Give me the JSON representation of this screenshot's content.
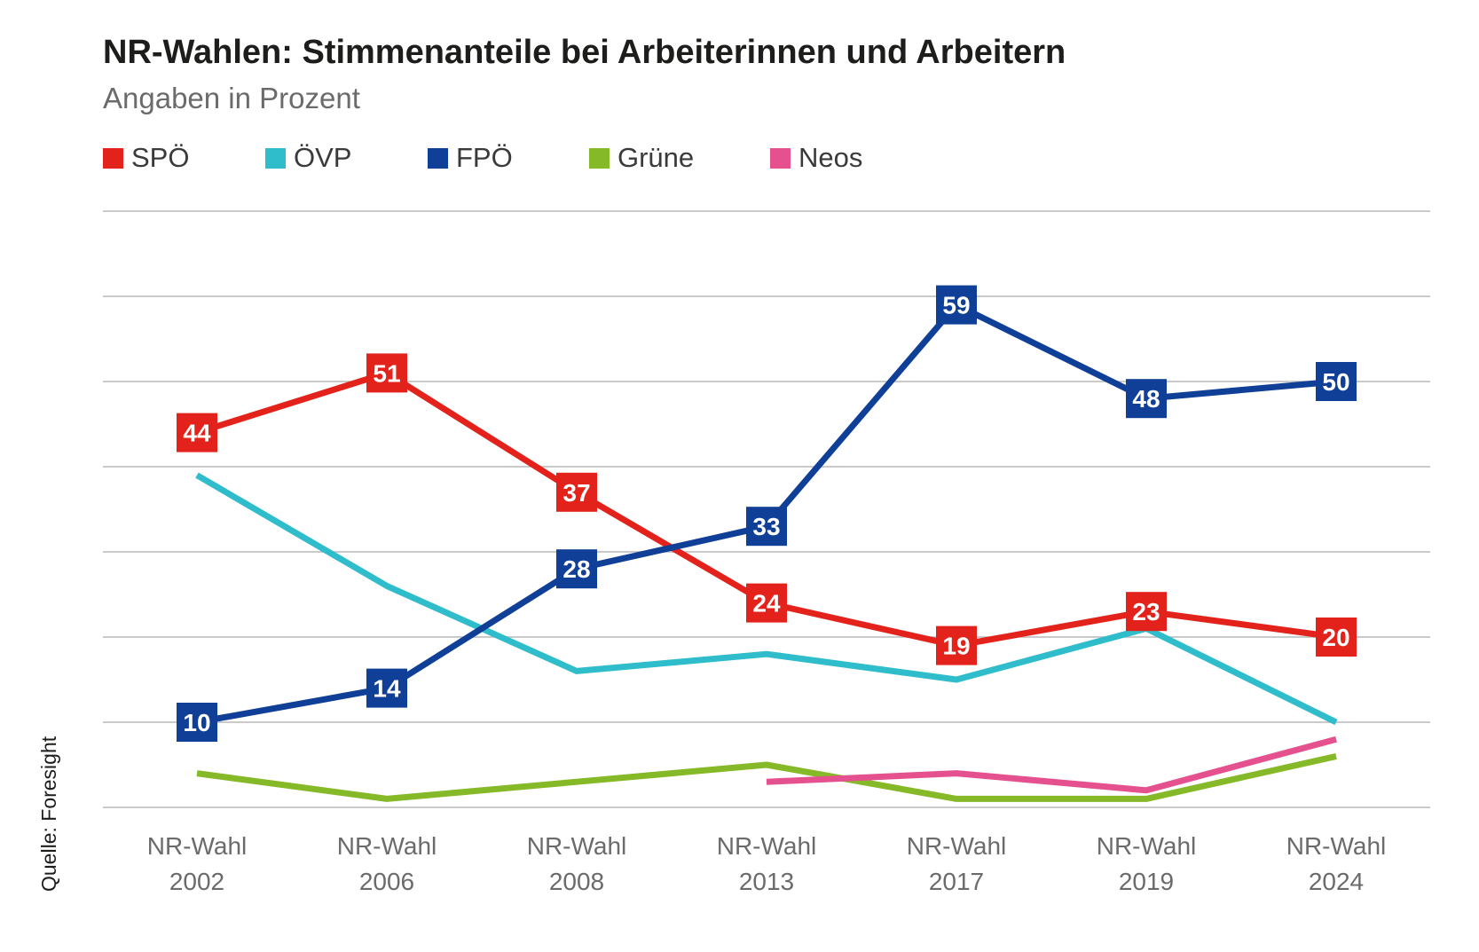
{
  "chart_data": {
    "type": "line",
    "title": "NR-Wahlen: Stimmenanteile bei Arbeiterinnen und Arbeitern",
    "subtitle": "Angaben in Prozent",
    "source": "Quelle: Foresight",
    "categories": [
      {
        "line1": "NR-Wahl",
        "line2": "2002"
      },
      {
        "line1": "NR-Wahl",
        "line2": "2006"
      },
      {
        "line1": "NR-Wahl",
        "line2": "2008"
      },
      {
        "line1": "NR-Wahl",
        "line2": "2013"
      },
      {
        "line1": "NR-Wahl",
        "line2": "2017"
      },
      {
        "line1": "NR-Wahl",
        "line2": "2019"
      },
      {
        "line1": "NR-Wahl",
        "line2": "2024"
      }
    ],
    "ylim": [
      0,
      70
    ],
    "gridlines": [
      0,
      10,
      20,
      30,
      40,
      50,
      60,
      70
    ],
    "series": [
      {
        "name": "SPÖ",
        "color": "#e3231b",
        "labeled": true,
        "values": [
          44,
          51,
          37,
          24,
          19,
          23,
          20
        ]
      },
      {
        "name": "ÖVP",
        "color": "#2fbccb",
        "labeled": false,
        "values": [
          39,
          26,
          16,
          18,
          15,
          21,
          10
        ]
      },
      {
        "name": "FPÖ",
        "color": "#0f3f96",
        "labeled": true,
        "values": [
          10,
          14,
          28,
          33,
          59,
          48,
          50
        ]
      },
      {
        "name": "Grüne",
        "color": "#86b927",
        "labeled": false,
        "values": [
          4,
          1,
          3,
          5,
          1,
          1,
          6
        ]
      },
      {
        "name": "Neos",
        "color": "#e5508f",
        "labeled": false,
        "values": [
          null,
          null,
          null,
          3,
          4,
          2,
          8
        ]
      }
    ]
  }
}
